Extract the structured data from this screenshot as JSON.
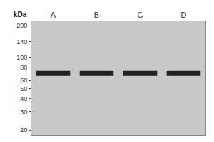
{
  "chart_data": {
    "type": "scatter",
    "ylabel": "kDa",
    "categories": [
      "A",
      "B",
      "C",
      "D"
    ],
    "values": [
      70,
      70,
      70,
      70
    ],
    "color": "#222222",
    "log": "y",
    "ylim": [
      18,
      220
    ],
    "yticks": [
      200,
      140,
      100,
      80,
      60,
      50,
      40,
      30,
      20
    ],
    "grid": false
  }
}
